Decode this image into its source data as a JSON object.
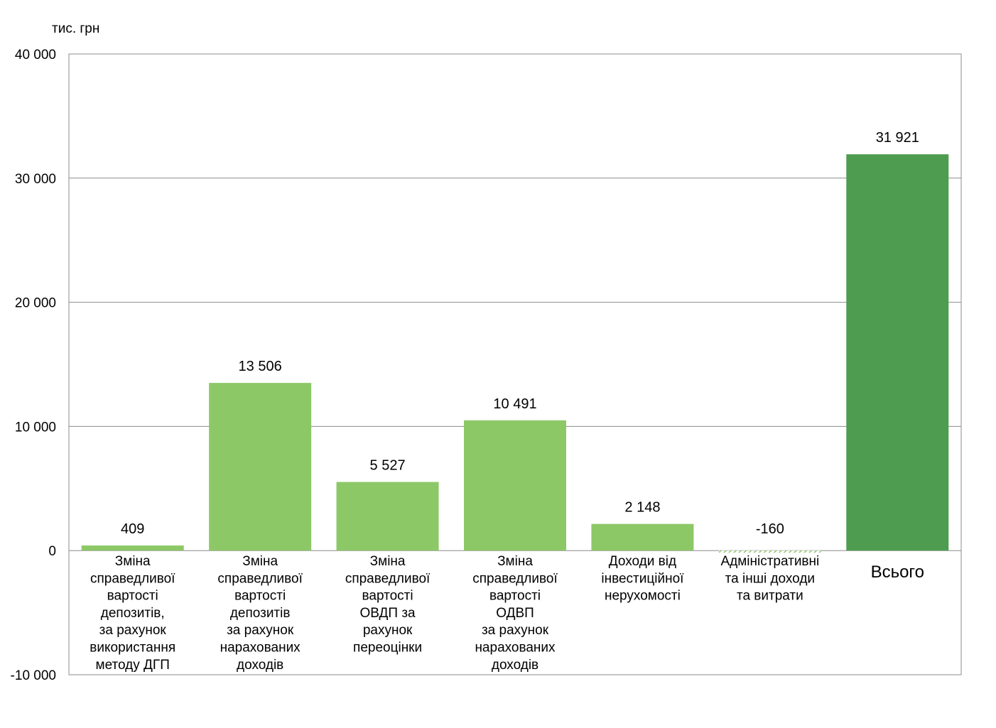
{
  "chart_data": {
    "type": "bar",
    "unit_label": "тис. грн",
    "ylim": [
      -10000,
      40000
    ],
    "y_ticks": [
      40000,
      30000,
      20000,
      10000,
      0,
      -10000
    ],
    "y_tick_labels": [
      "40 000",
      "30 000",
      "20 000",
      "10 000",
      "0",
      "-10 000"
    ],
    "grid": true,
    "categories": [
      "Зміна справедливої вартості депозитів, за рахунок використання методу ДГП",
      "Зміна справедливої вартості депозитів за рахунок нарахованих доходів",
      "Зміна справедливої вартості ОВДП за рахунок переоцінки",
      "Зміна справедливої вартості ОДВП за рахунок нарахованих доходів",
      "Доходи від інвестиційної нерухомості",
      "Адміністративні та інші доходи та витрати",
      "Всього"
    ],
    "category_lines": [
      [
        "Зміна",
        "справедливої",
        "вартості",
        "депозитів,",
        "за рахунок",
        "використання",
        "методу ДГП"
      ],
      [
        "Зміна",
        "справедливої",
        "вартості",
        "депозитів",
        "за рахунок",
        "нарахованих",
        "доходів"
      ],
      [
        "Зміна",
        "справедливої",
        "вартості",
        "ОВДП за",
        "рахунок",
        "переоцінки"
      ],
      [
        "Зміна",
        "справедливої",
        "вартості",
        "ОДВП",
        "за рахунок",
        "нарахованих",
        "доходів"
      ],
      [
        "Доходи від",
        "інвестиційної",
        "нерухомості"
      ],
      [
        "Адміністративні",
        "та інші доходи",
        "та витрати"
      ],
      [
        "Всього"
      ]
    ],
    "values": [
      409,
      13506,
      5527,
      10491,
      2148,
      -160,
      31921
    ],
    "value_labels": [
      "409",
      "13 506",
      "5 527",
      "10 491",
      "2 148",
      "-160",
      "31 921"
    ],
    "colors": {
      "component": "#8DC867",
      "total": "#4E9C4F",
      "grid": "#8C8C8C",
      "frame": "#8C8C8C"
    }
  }
}
